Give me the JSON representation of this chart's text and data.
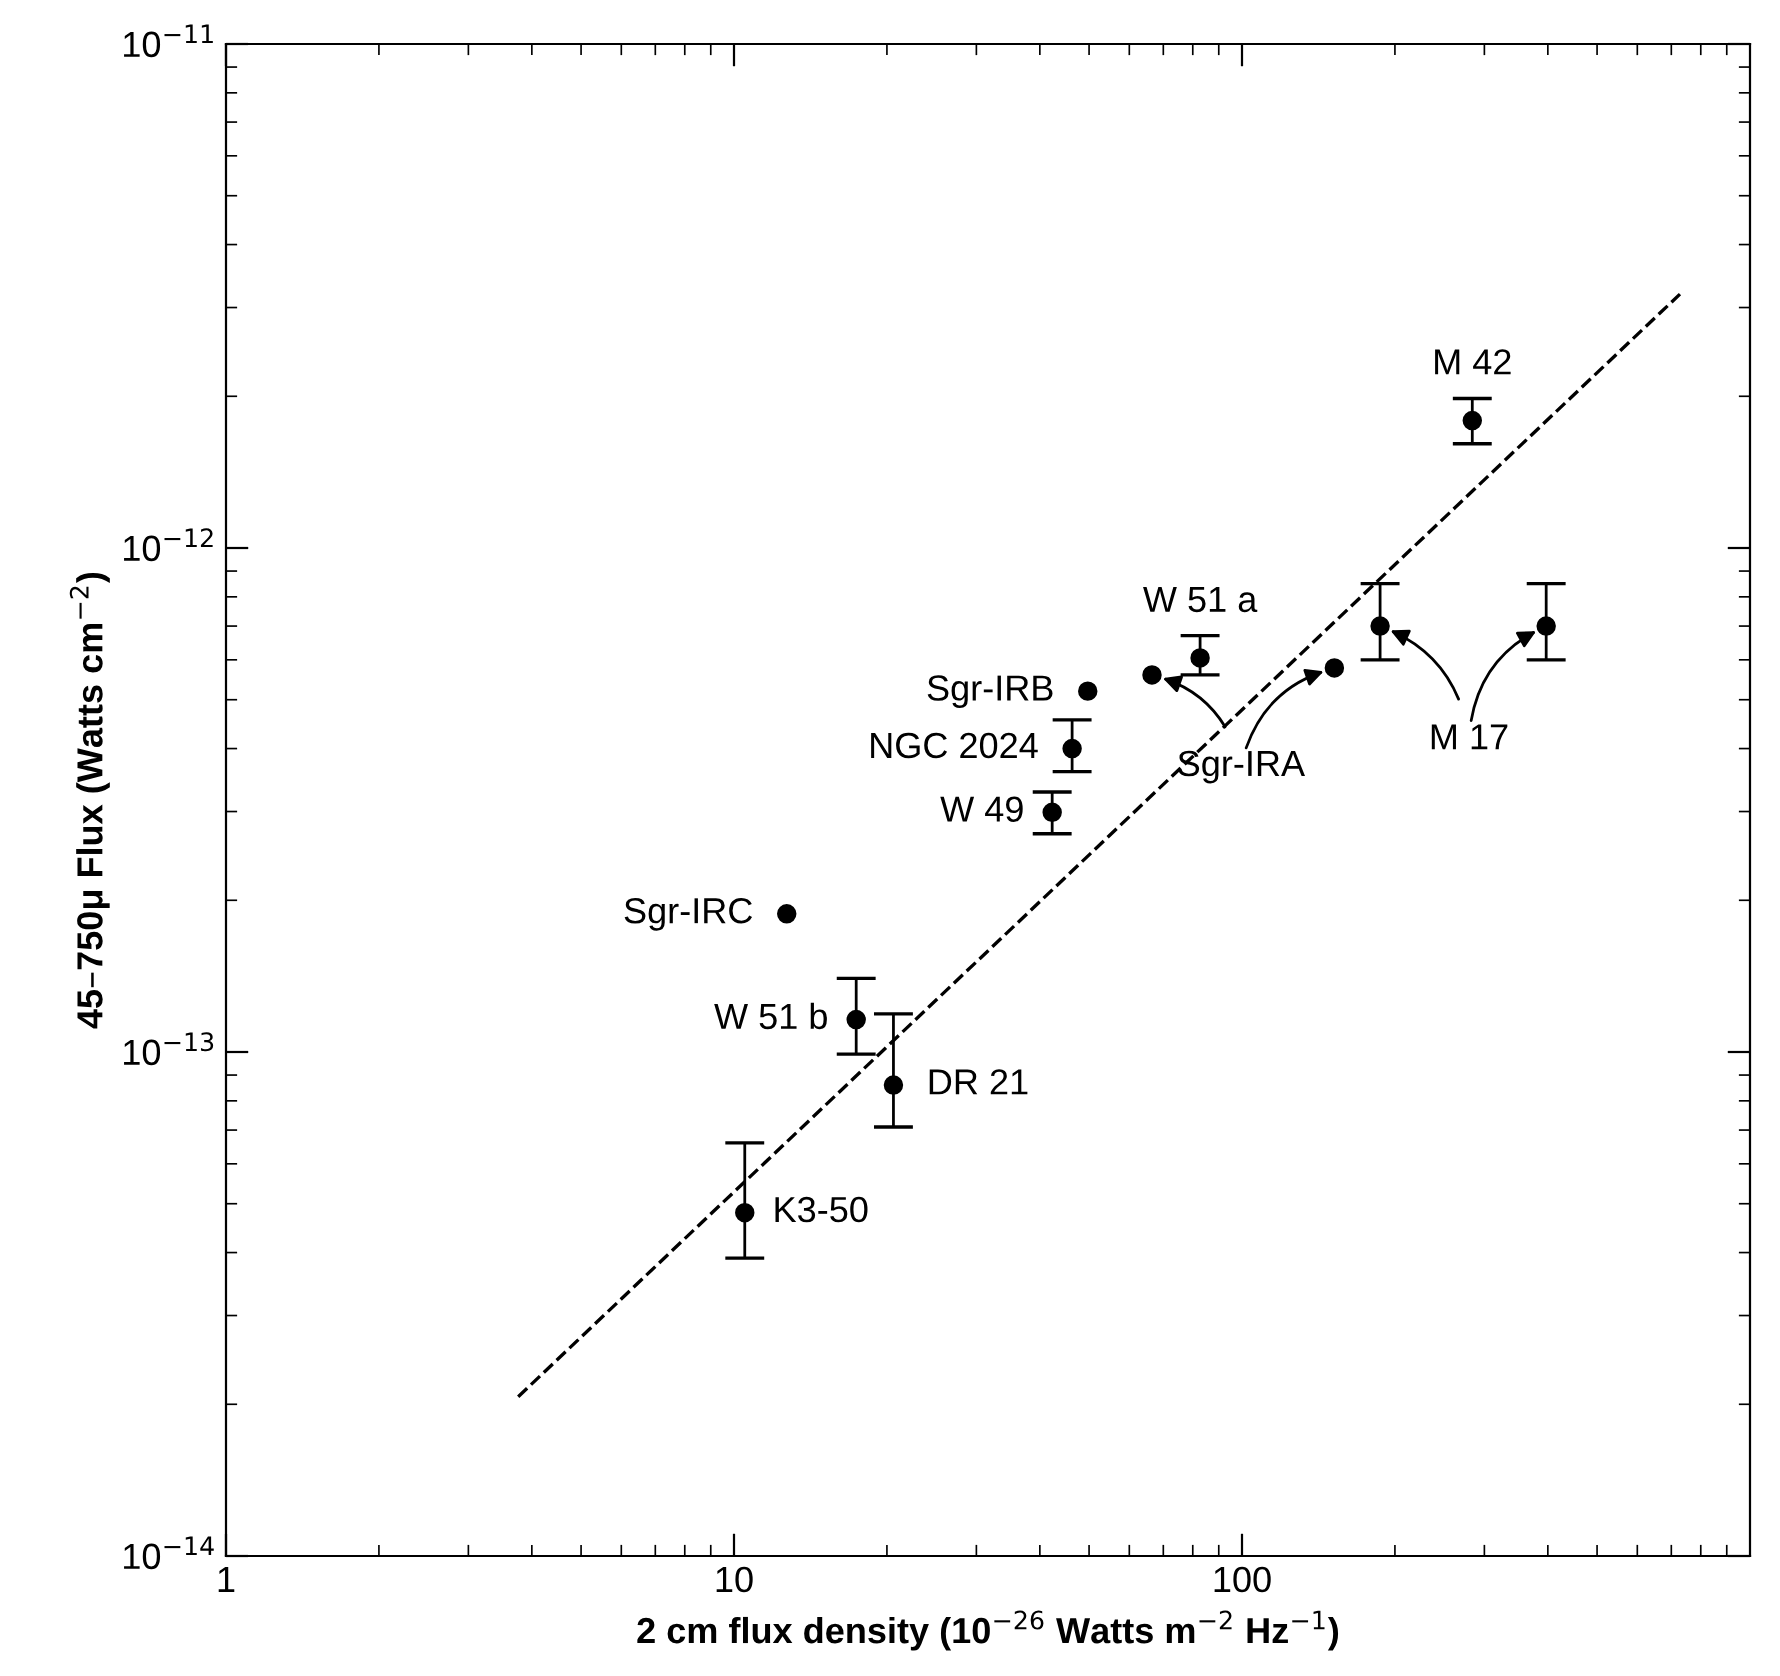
{
  "chart_data": {
    "type": "scatter",
    "xlabel": "2 cm flux density (10$^{−26}$ Watts m$^{−2}$ Hz$^{−1}$)",
    "ylabel": "45–750μ Flux (Watts cm$^{−2}$)",
    "log": "xy",
    "xlim": [
      1,
      1000
    ],
    "xticks": [
      1,
      10,
      100
    ],
    "ylim": [
      1e-14,
      1e-11
    ],
    "yticks": [
      {
        "value": 1e-14,
        "label": "10$^{−14}$"
      },
      {
        "value": 1e-13,
        "label": "10$^{−13}$"
      },
      {
        "value": 1e-12,
        "label": "10$^{−12}$"
      },
      {
        "value": 1e-11,
        "label": "10$^{−11}$"
      }
    ],
    "grid": false,
    "marker": "circle",
    "series": [
      {
        "color": "#000000",
        "x": [
          10.5,
          17.4,
          20.6,
          12.7,
          42.3,
          46.3,
          49.7,
          66.5,
          82.7,
          152,
          187,
          397,
          284
        ],
        "values": [
          4.8e-14,
          1.16e-13,
          8.6e-14,
          1.88e-13,
          2.99e-13,
          4e-13,
          5.2e-13,
          5.6e-13,
          6.05e-13,
          5.78e-13,
          7e-13,
          7e-13,
          1.79e-12
        ],
        "errors": [
          [
            3.9e-14,
            6.6e-14
          ],
          [
            9.9e-14,
            1.4e-13
          ],
          [
            7.1e-14,
            1.19e-13
          ],
          null,
          [
            2.71e-13,
            3.28e-13
          ],
          [
            3.6e-13,
            4.56e-13
          ],
          null,
          null,
          [
            5.6e-13,
            6.7e-13
          ],
          null,
          [
            6e-13,
            8.5e-13
          ],
          [
            6e-13,
            8.5e-13
          ],
          [
            1.61e-12,
            1.98e-12
          ]
        ]
      },
      {
        "type": "line",
        "color": "#000000",
        "line_style": "dashed",
        "marker": "none",
        "x": [
          3.76,
          728
        ],
        "values": [
          2.07e-14,
          3.19e-12
        ]
      }
    ],
    "annotations": [
      {
        "text": "K3-50",
        "x": 10.5,
        "y": 4.8e-14
      },
      {
        "text": "W 51 b",
        "x": 17.4,
        "y": 1.16e-13
      },
      {
        "text": "DR 21",
        "x": 20.6,
        "y": 8.6e-14
      },
      {
        "text": "Sgr-IRC",
        "x": 12.7,
        "y": 1.88e-13
      },
      {
        "text": "W 49",
        "x": 42.3,
        "y": 2.99e-13
      },
      {
        "text": "NGC 2024",
        "x": 46.3,
        "y": 4e-13
      },
      {
        "text": "Sgr-IRB",
        "x": 49.7,
        "y": 5.2e-13
      },
      {
        "text": "W 51 a",
        "x": 82.7,
        "y": 6.05e-13
      },
      {
        "text": "M 42",
        "x": 284,
        "y": 1.79e-12
      },
      {
        "text": "Sgr-IRA",
        "x": 66.5,
        "y": 5.6e-13
      },
      {
        "text": "M 17",
        "x": 187,
        "y": 7e-13
      }
    ]
  }
}
